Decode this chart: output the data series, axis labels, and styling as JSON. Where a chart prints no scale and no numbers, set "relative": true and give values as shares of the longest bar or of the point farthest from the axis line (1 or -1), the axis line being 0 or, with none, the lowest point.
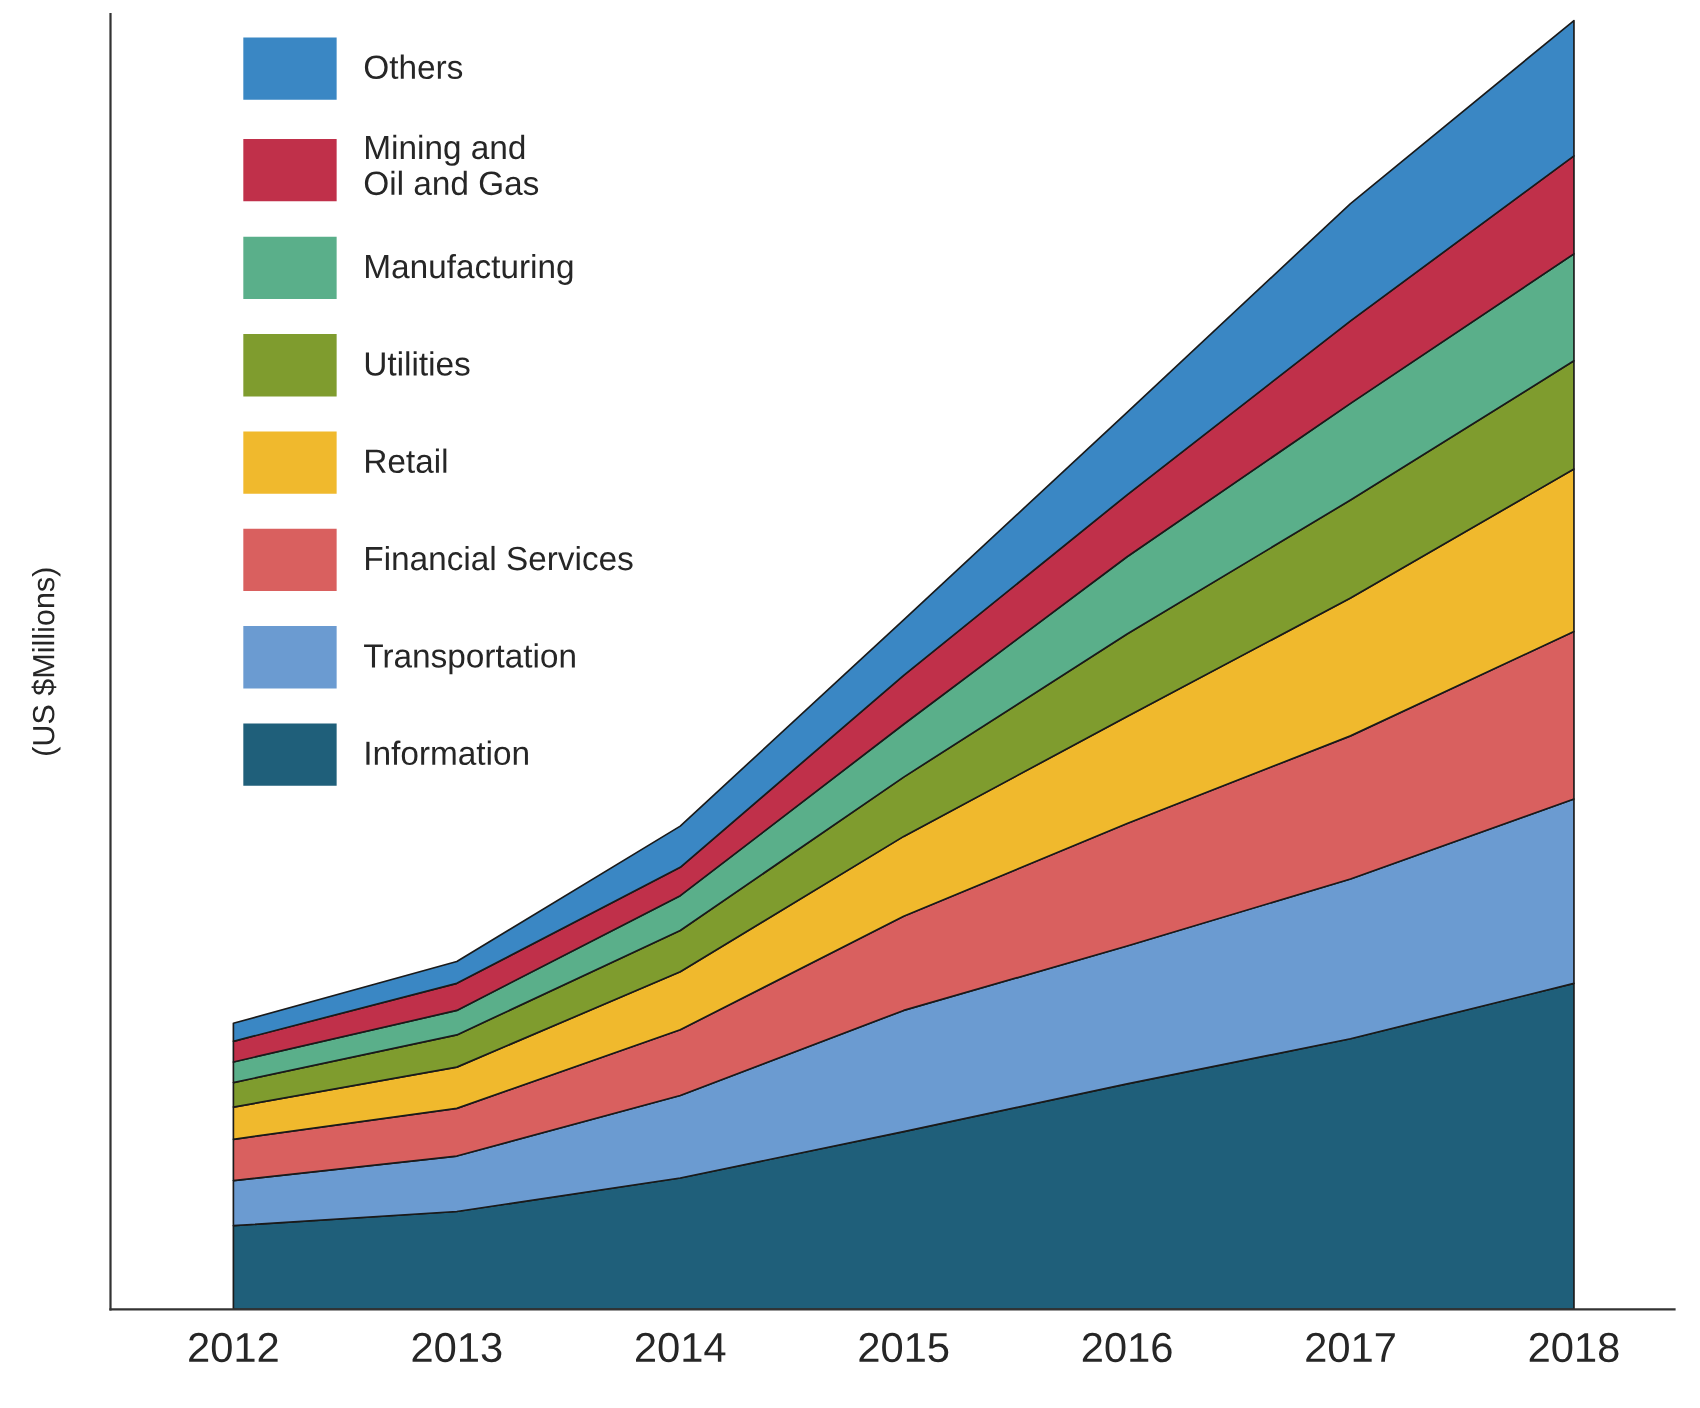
{
  "chart_data": {
    "type": "area",
    "stacked": true,
    "relative": true,
    "ylabel": "(US $Millions)",
    "categories": [
      "2012",
      "2013",
      "2014",
      "2015",
      "2016",
      "2017",
      "2018"
    ],
    "series": [
      {
        "name": "Information",
        "color": "#1f5f7a",
        "values": [
          0.065,
          0.076,
          0.102,
          0.138,
          0.175,
          0.21,
          0.253
        ]
      },
      {
        "name": "Transportation",
        "color": "#6b9bd1",
        "values": [
          0.035,
          0.043,
          0.064,
          0.094,
          0.107,
          0.124,
          0.143
        ]
      },
      {
        "name": "Financial Services",
        "color": "#d9605f",
        "values": [
          0.032,
          0.037,
          0.051,
          0.073,
          0.095,
          0.111,
          0.13
        ]
      },
      {
        "name": "Retail",
        "color": "#f0b92d",
        "values": [
          0.025,
          0.032,
          0.045,
          0.062,
          0.083,
          0.107,
          0.126
        ]
      },
      {
        "name": "Utilities",
        "color": "#7f9c2e",
        "values": [
          0.019,
          0.025,
          0.032,
          0.046,
          0.064,
          0.076,
          0.084
        ]
      },
      {
        "name": "Manufacturing",
        "color": "#5aaf8a",
        "values": [
          0.016,
          0.019,
          0.027,
          0.041,
          0.06,
          0.075,
          0.083
        ]
      },
      {
        "name": "Mining and\nOil and Gas",
        "color": "#c0304a",
        "values": [
          0.016,
          0.021,
          0.022,
          0.038,
          0.048,
          0.064,
          0.076
        ]
      },
      {
        "name": "Others",
        "color": "#3a87c4",
        "values": [
          0.014,
          0.017,
          0.032,
          0.043,
          0.064,
          0.091,
          0.105
        ]
      }
    ],
    "legend": "top left",
    "grid": false
  }
}
